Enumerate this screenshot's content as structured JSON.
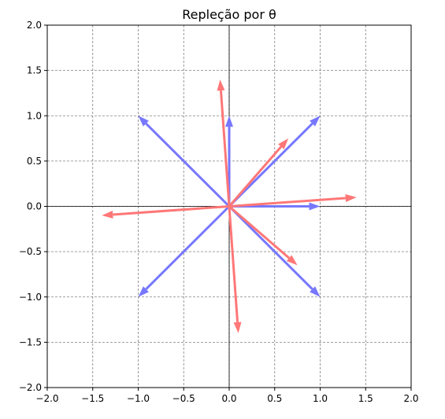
{
  "chart_data": {
    "type": "quiver",
    "title": "Repleção por θ",
    "xlabel": "",
    "ylabel": "",
    "xlim": [
      -2.0,
      2.0
    ],
    "ylim": [
      -2.0,
      2.0
    ],
    "xticks": [
      "−2.0",
      "−1.5",
      "−1.0",
      "−0.5",
      "0.0",
      "0.5",
      "1.0",
      "1.5",
      "2.0"
    ],
    "yticks": [
      "−2.0",
      "−1.5",
      "−1.0",
      "−0.5",
      "0.0",
      "0.5",
      "1.0",
      "1.5",
      "2.0"
    ],
    "xtick_values": [
      -2.0,
      -1.5,
      -1.0,
      -0.5,
      0.0,
      0.5,
      1.0,
      1.5,
      2.0
    ],
    "ytick_values": [
      -2.0,
      -1.5,
      -1.0,
      -0.5,
      0.0,
      0.5,
      1.0,
      1.5,
      2.0
    ],
    "grid": true,
    "origin": [
      0,
      0
    ],
    "series": [
      {
        "color": "#7777ff",
        "vectors": [
          {
            "dx": 0.0,
            "dy": 1.0
          },
          {
            "dx": 1.0,
            "dy": 1.0
          },
          {
            "dx": 1.0,
            "dy": 0.0
          },
          {
            "dx": 1.0,
            "dy": -1.0
          },
          {
            "dx": -1.0,
            "dy": -1.0
          },
          {
            "dx": -1.0,
            "dy": 1.0
          }
        ]
      },
      {
        "color": "#ff7777",
        "vectors": [
          {
            "dx": -0.1,
            "dy": 1.4
          },
          {
            "dx": 0.65,
            "dy": 0.75
          },
          {
            "dx": 1.4,
            "dy": 0.1
          },
          {
            "dx": 0.75,
            "dy": -0.65
          },
          {
            "dx": 0.1,
            "dy": -1.4
          },
          {
            "dx": -1.4,
            "dy": -0.1
          }
        ]
      }
    ]
  }
}
